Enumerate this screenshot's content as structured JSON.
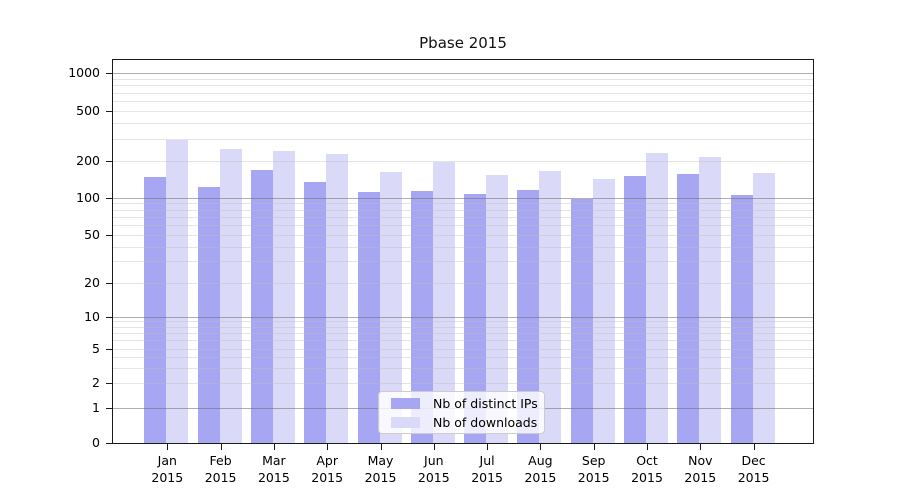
{
  "title": "Pbase 2015",
  "colors": {
    "ips_bar": "#a6a6f2",
    "downloads_bar": "#dadaf8",
    "major_gridline": "#6e6e6e",
    "minor_gridline": "#bebebe",
    "axis_spine": "#1a1a1a"
  },
  "legend": {
    "items": [
      {
        "label": "Nb of distinct IPs",
        "color": "#a6a6f2"
      },
      {
        "label": "Nb of downloads",
        "color": "#dadaf8"
      }
    ]
  },
  "chart_data": {
    "type": "bar",
    "title": "Pbase 2015",
    "categories": [
      "Jan",
      "Feb",
      "Mar",
      "Apr",
      "May",
      "Jun",
      "Jul",
      "Aug",
      "Sep",
      "Oct",
      "Nov",
      "Dec"
    ],
    "category_year": "2015",
    "series": [
      {
        "name": "Nb of distinct IPs",
        "color": "#a6a6f2",
        "values": [
          147,
          123,
          168,
          135,
          110,
          114,
          107,
          116,
          97,
          150,
          155,
          105
        ]
      },
      {
        "name": "Nb of downloads",
        "color": "#dadaf8",
        "values": [
          293,
          248,
          240,
          226,
          163,
          195,
          153,
          166,
          141,
          233,
          215,
          158
        ]
      }
    ],
    "xlabel": "",
    "ylabel": "",
    "yscale": "symlog",
    "y_ticks": [
      1000,
      500,
      200,
      100,
      50,
      20,
      10,
      5,
      2,
      1,
      0
    ],
    "ylim": [
      0,
      1270
    ],
    "grid": true,
    "legend_position": "lower center"
  }
}
